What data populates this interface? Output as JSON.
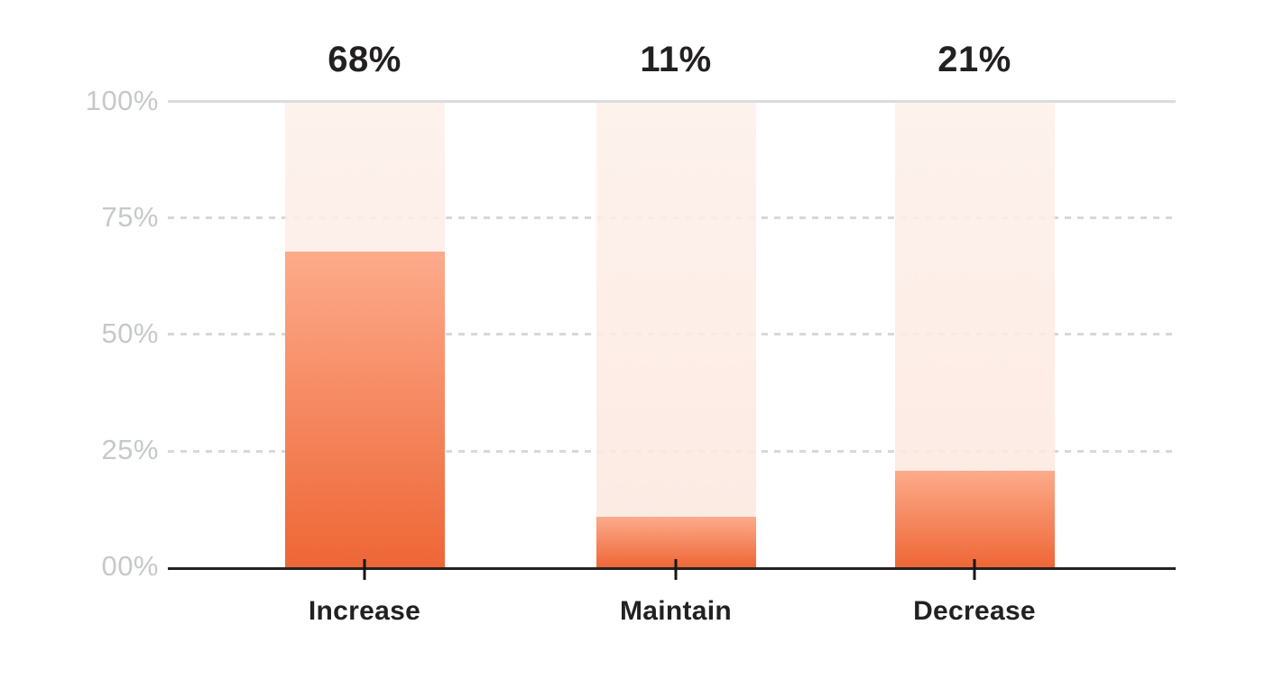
{
  "chart_data": {
    "type": "bar",
    "categories": [
      "Increase",
      "Maintain",
      "Decrease"
    ],
    "values": [
      68,
      11,
      21
    ],
    "value_labels": [
      "68%",
      "11%",
      "21%"
    ],
    "title": "",
    "xlabel": "",
    "ylabel": "",
    "ylim": [
      0,
      100
    ],
    "ytick_labels": [
      "100%",
      "75%",
      "50%",
      "25%",
      "00%"
    ],
    "ytick_values": [
      100,
      75,
      50,
      25,
      0
    ],
    "grid": "horizontal; solid line at 100%, dashed lines at 75%/50%/25%, dark solid baseline at 0%",
    "legend_position": "none"
  },
  "colors": {
    "fill_top": "#fcab8b",
    "fill_bottom": "#ee6636",
    "bar_background": "#fcefe8",
    "axis": "#262220",
    "grid_solid": "#dbdcdd",
    "grid_dash": "#d8d8d8",
    "tick_label": "#c6c8ca",
    "value_label": "#232021",
    "cat_label": "#232021",
    "page_background": "#ffffff"
  }
}
